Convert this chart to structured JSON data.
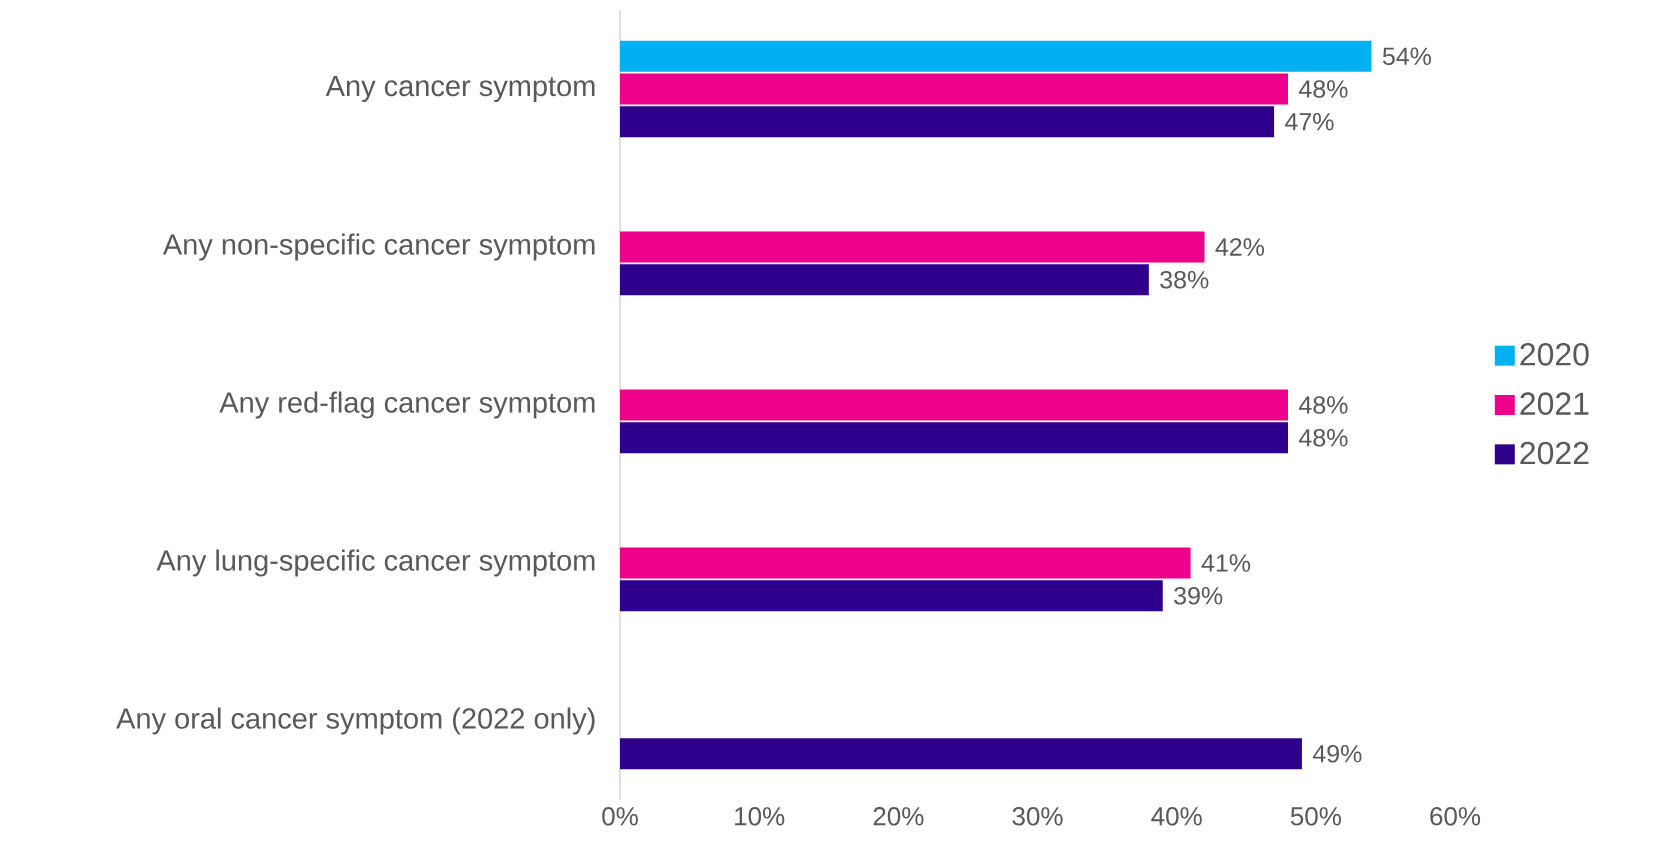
{
  "chart_data": {
    "type": "bar",
    "orientation": "horizontal",
    "categories": [
      "Any cancer symptom",
      "Any non-specific cancer symptom",
      "Any red-flag cancer symptom",
      "Any lung-specific cancer symptom",
      "Any oral cancer symptom (2022 only)"
    ],
    "series": [
      {
        "name": "2020",
        "color": "#00b0f0",
        "values": [
          54,
          null,
          null,
          null,
          null
        ],
        "value_labels": [
          "54%",
          null,
          null,
          null,
          null
        ]
      },
      {
        "name": "2021",
        "color": "#ec008c",
        "values": [
          48,
          42,
          48,
          41,
          null
        ],
        "value_labels": [
          "48%",
          "42%",
          "48%",
          "41%",
          null
        ]
      },
      {
        "name": "2022",
        "color": "#2e008b",
        "values": [
          47,
          38,
          48,
          39,
          49
        ],
        "value_labels": [
          "47%",
          "38%",
          "48%",
          "39%",
          "49%"
        ]
      }
    ],
    "xlim": [
      0,
      60
    ],
    "xticks": [
      {
        "value": 0,
        "label": "0%"
      },
      {
        "value": 10,
        "label": "10%"
      },
      {
        "value": 20,
        "label": "20%"
      },
      {
        "value": 30,
        "label": "30%"
      },
      {
        "value": 40,
        "label": "40%"
      },
      {
        "value": 50,
        "label": "50%"
      },
      {
        "value": 60,
        "label": "60%"
      }
    ],
    "legend": "right"
  }
}
